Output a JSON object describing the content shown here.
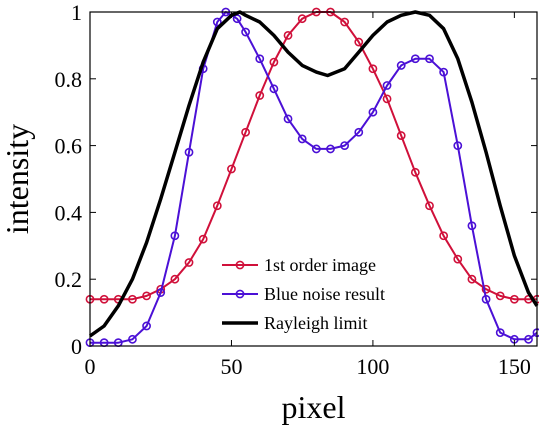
{
  "chart_data": {
    "type": "line",
    "xlabel": "pixel",
    "ylabel": "intensity",
    "xlim": [
      0,
      158
    ],
    "ylim": [
      0,
      1
    ],
    "xticks": [
      0,
      50,
      100,
      150
    ],
    "yticks": [
      0,
      0.2,
      0.4,
      0.6,
      0.8,
      1
    ],
    "xtick_labels": [
      "0",
      "50",
      "100",
      "150"
    ],
    "ytick_labels": [
      "0",
      "0.2",
      "0.4",
      "0.6",
      "0.8",
      "1"
    ],
    "grid": false,
    "legend_position": "lower-center",
    "series": [
      {
        "name": "1st order image",
        "color": "#d0103a",
        "marker": "circle",
        "x": [
          0,
          5,
          10,
          15,
          20,
          25,
          30,
          35,
          40,
          45,
          50,
          55,
          60,
          65,
          70,
          75,
          80,
          85,
          90,
          95,
          100,
          105,
          110,
          115,
          120,
          125,
          130,
          135,
          140,
          145,
          150,
          155,
          158
        ],
        "y": [
          0.14,
          0.14,
          0.14,
          0.14,
          0.15,
          0.17,
          0.2,
          0.25,
          0.32,
          0.42,
          0.53,
          0.64,
          0.75,
          0.85,
          0.93,
          0.98,
          1.0,
          1.0,
          0.97,
          0.91,
          0.83,
          0.74,
          0.63,
          0.52,
          0.42,
          0.33,
          0.26,
          0.2,
          0.17,
          0.15,
          0.14,
          0.14,
          0.14
        ]
      },
      {
        "name": "Blue noise result",
        "color": "#4b10d6",
        "marker": "circle",
        "x": [
          0,
          5,
          10,
          15,
          20,
          25,
          30,
          35,
          40,
          45,
          48,
          52,
          55,
          60,
          65,
          70,
          75,
          80,
          85,
          90,
          95,
          100,
          105,
          110,
          115,
          120,
          125,
          130,
          135,
          140,
          145,
          150,
          155,
          158
        ],
        "y": [
          0.01,
          0.01,
          0.01,
          0.02,
          0.06,
          0.16,
          0.33,
          0.58,
          0.83,
          0.97,
          1.0,
          0.98,
          0.94,
          0.86,
          0.77,
          0.68,
          0.62,
          0.59,
          0.59,
          0.6,
          0.64,
          0.7,
          0.78,
          0.84,
          0.86,
          0.86,
          0.82,
          0.6,
          0.36,
          0.14,
          0.04,
          0.02,
          0.02,
          0.04
        ]
      },
      {
        "name": "Rayleigh limit",
        "color": "#000000",
        "marker": "none",
        "x": [
          0,
          5,
          10,
          15,
          20,
          25,
          30,
          35,
          40,
          45,
          50,
          53,
          55,
          60,
          65,
          70,
          75,
          80,
          84,
          90,
          95,
          100,
          105,
          110,
          115,
          120,
          125,
          130,
          135,
          140,
          145,
          150,
          155,
          158
        ],
        "y": [
          0.03,
          0.06,
          0.12,
          0.2,
          0.31,
          0.44,
          0.58,
          0.72,
          0.85,
          0.95,
          0.99,
          1.0,
          0.99,
          0.97,
          0.93,
          0.88,
          0.84,
          0.82,
          0.81,
          0.83,
          0.88,
          0.93,
          0.97,
          0.99,
          1.0,
          0.99,
          0.95,
          0.86,
          0.73,
          0.58,
          0.42,
          0.27,
          0.16,
          0.12
        ]
      }
    ]
  }
}
